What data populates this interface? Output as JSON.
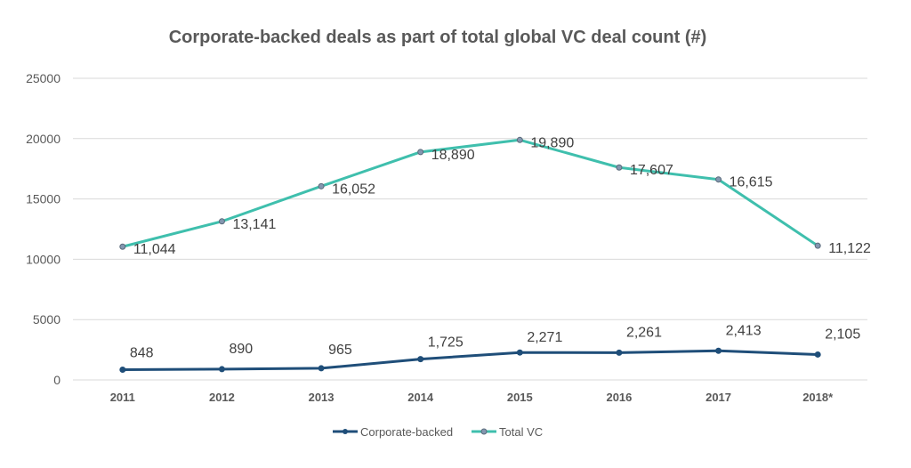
{
  "chart_data": {
    "type": "line",
    "title": "Corporate-backed deals as part of total global VC deal count (#)",
    "xlabel": "",
    "ylabel": "",
    "categories": [
      "2011",
      "2012",
      "2013",
      "2014",
      "2015",
      "2016",
      "2017",
      "2018*"
    ],
    "ylim": [
      0,
      25000
    ],
    "yticks": [
      0,
      5000,
      10000,
      15000,
      20000,
      25000
    ],
    "grid": true,
    "legend_position": "bottom",
    "series": [
      {
        "name": "Corporate-backed",
        "color": "#1f4e79",
        "values": [
          848,
          890,
          965,
          1725,
          2271,
          2261,
          2413,
          2105
        ],
        "labels": [
          "848",
          "890",
          "965",
          "1,725",
          "2,271",
          "2,261",
          "2,413",
          "2,105"
        ]
      },
      {
        "name": "Total VC",
        "color": "#3fbfad",
        "marker_color": "#8497b0",
        "values": [
          11044,
          13141,
          16052,
          18890,
          19890,
          17607,
          16615,
          11122
        ],
        "labels": [
          "11,044",
          "13,141",
          "16,052",
          "18,890",
          "19,890",
          "17,607",
          "16,615",
          "11,122"
        ]
      }
    ]
  }
}
